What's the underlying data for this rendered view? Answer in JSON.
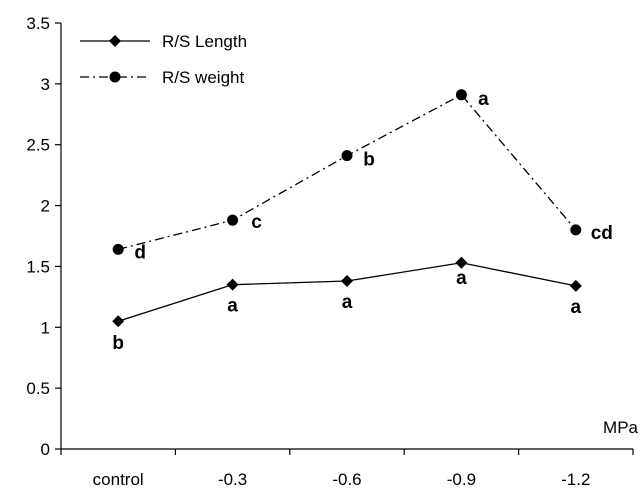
{
  "chart_data": {
    "type": "line",
    "categories": [
      "control",
      "-0.3",
      "-0.6",
      "-0.9",
      "-1.2"
    ],
    "xlabel": "MPa",
    "ylabel": "",
    "ylim": [
      0,
      3.5
    ],
    "yticks": [
      "0",
      "0.5",
      "1",
      "1.5",
      "2",
      "2.5",
      "3",
      "3.5"
    ],
    "grid": false,
    "legend_position": "top-left",
    "series": [
      {
        "name": "R/S Length",
        "values": [
          1.05,
          1.35,
          1.38,
          1.53,
          1.34
        ],
        "labels": [
          "b",
          "a",
          "a",
          "a",
          "a"
        ],
        "marker": "diamond",
        "line_style": "solid",
        "color": "#000000"
      },
      {
        "name": "R/S weight",
        "values": [
          1.64,
          1.88,
          2.41,
          2.91,
          1.8
        ],
        "labels": [
          "d",
          "c",
          "b",
          "a",
          "cd"
        ],
        "marker": "circle",
        "line_style": "dashdot",
        "color": "#000000"
      }
    ]
  }
}
